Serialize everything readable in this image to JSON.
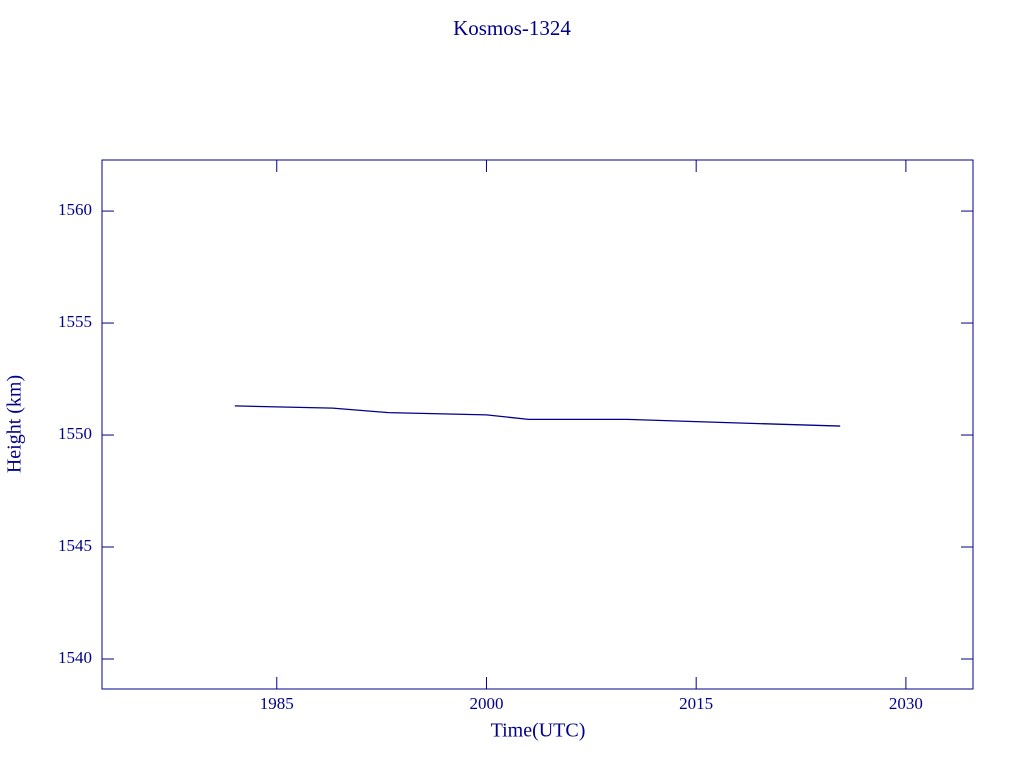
{
  "chart_data": {
    "type": "line",
    "title": "Kosmos-1324",
    "x_label": "Time(UTC)",
    "y_label": "Height (km)",
    "series": [
      {
        "color": "#00008b",
        "x": [
          1982.0,
          1989.0,
          1993.0,
          2000.0,
          2003.0,
          2010.0,
          2015.0,
          2020.0,
          2025.3
        ],
        "values": [
          1551.3,
          1551.2,
          1551.0,
          1550.9,
          1550.7,
          1550.7,
          1550.6,
          1550.5,
          1550.4
        ]
      }
    ],
    "xlim": [
      1972.5,
      2034.8
    ],
    "xticks": [
      1985,
      2000,
      2015,
      2030
    ],
    "ylim": [
      1538.66,
      1562.28
    ],
    "yticks": [
      1540,
      1545,
      1550,
      1555,
      1560
    ],
    "grid": false
  }
}
